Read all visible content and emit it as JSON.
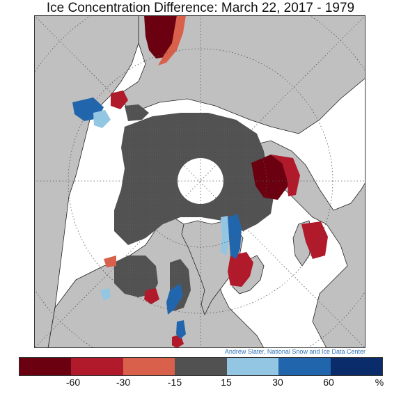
{
  "title": "Ice Concentration Difference: March 22, 2017 - 1979",
  "credit": "Andrew Slater, National Snow and Ice Data Center",
  "legend": {
    "colors": [
      "#6b0011",
      "#b01a2a",
      "#d9604a",
      "#515151",
      "#92c6e2",
      "#2166ac",
      "#0b2c6b"
    ],
    "ticks": [
      "-60",
      "-30",
      "-15",
      "15",
      "30",
      "60"
    ],
    "unit": "%"
  },
  "map": {
    "land_color": "#c0c0c0",
    "no_data_color": "#ffffff",
    "ice_color": "#515151"
  }
}
